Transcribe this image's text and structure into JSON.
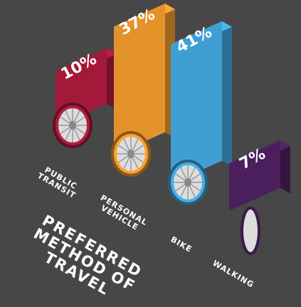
{
  "chart_data": {
    "type": "bar",
    "title": "PREFERRED METHOD OF TRAVEL",
    "categories": [
      "PUBLIC TRANSIT",
      "PERSONAL VEHICLE",
      "BIKE",
      "WALKING"
    ],
    "values": [
      10,
      37,
      41,
      7
    ],
    "value_labels": [
      "10%",
      "37%",
      "41%",
      "7%"
    ],
    "colors": [
      "#a3193a",
      "#e4922a",
      "#3f9fd3",
      "#4a1f5c"
    ]
  }
}
